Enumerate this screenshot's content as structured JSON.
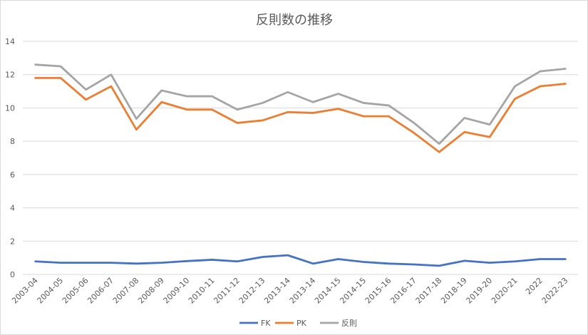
{
  "chart_data": {
    "type": "line",
    "title": "反則数の推移",
    "xlabel": "",
    "ylabel": "",
    "ylim": [
      0,
      14
    ],
    "yticks": [
      0,
      2,
      4,
      6,
      8,
      10,
      12,
      14
    ],
    "grid": true,
    "legend_position": "bottom",
    "categories": [
      "2003-04",
      "2004-05",
      "2005-06",
      "2006-07",
      "2007-08",
      "2008-09",
      "2009-10",
      "2010-11",
      "2011-12",
      "2012-13",
      "2013-14",
      "2013-14",
      "2014-15",
      "2014-15",
      "2015-16",
      "2016-17",
      "2017-18",
      "2018-19",
      "2019-20",
      "2020-21",
      "2022",
      "2022-23"
    ],
    "series": [
      {
        "name": "FK",
        "color": "#4472c4",
        "values": [
          0.78,
          0.7,
          0.7,
          0.7,
          0.65,
          0.7,
          0.8,
          0.88,
          0.78,
          1.05,
          1.15,
          0.65,
          0.92,
          0.75,
          0.65,
          0.6,
          0.52,
          0.82,
          0.7,
          0.78,
          0.92,
          0.92
        ]
      },
      {
        "name": "PK",
        "color": "#ed7d31",
        "values": [
          11.8,
          11.8,
          10.5,
          11.3,
          8.7,
          10.35,
          9.9,
          9.9,
          9.1,
          9.25,
          9.75,
          9.7,
          9.95,
          9.5,
          9.5,
          8.5,
          7.35,
          8.55,
          8.25,
          10.55,
          11.3,
          11.45
        ]
      },
      {
        "name": "反則",
        "color": "#a5a5a5",
        "values": [
          12.6,
          12.5,
          11.1,
          12.0,
          9.35,
          11.05,
          10.7,
          10.7,
          9.9,
          10.3,
          10.95,
          10.35,
          10.85,
          10.3,
          10.15,
          9.1,
          7.85,
          9.4,
          9.0,
          11.3,
          12.2,
          12.35
        ]
      }
    ]
  }
}
